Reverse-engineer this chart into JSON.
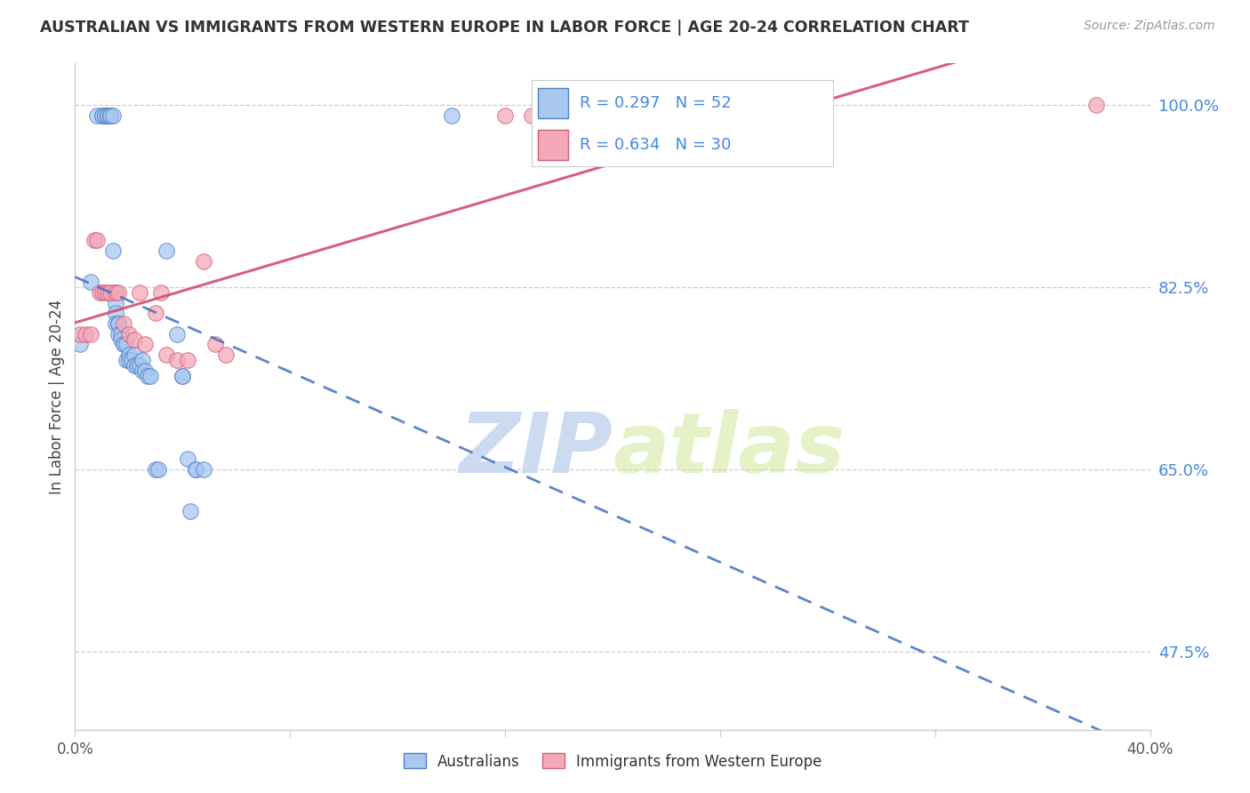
{
  "title": "AUSTRALIAN VS IMMIGRANTS FROM WESTERN EUROPE IN LABOR FORCE | AGE 20-24 CORRELATION CHART",
  "source": "Source: ZipAtlas.com",
  "ylabel": "In Labor Force | Age 20-24",
  "xlim": [
    0.0,
    0.4
  ],
  "ylim": [
    0.4,
    1.04
  ],
  "yticks": [
    1.0,
    0.825,
    0.65,
    0.475
  ],
  "ytick_labels": [
    "100.0%",
    "82.5%",
    "65.0%",
    "47.5%"
  ],
  "xticks": [
    0.0,
    0.08,
    0.16,
    0.24,
    0.32,
    0.4
  ],
  "xtick_labels": [
    "0.0%",
    "",
    "",
    "",
    "",
    "40.0%"
  ],
  "blue_r": 0.297,
  "blue_n": 52,
  "pink_r": 0.634,
  "pink_n": 30,
  "blue_fill": "#a8c8f0",
  "pink_fill": "#f4a8b8",
  "blue_edge": "#5080c8",
  "pink_edge": "#d06080",
  "blue_line": "#4070c0",
  "pink_line": "#d05070",
  "background_color": "#ffffff",
  "grid_color": "#ccccdd",
  "watermark_color": "#c8d8f0",
  "axis_color": "#cccccc",
  "tick_label_color_y": "#4488dd",
  "tick_label_color_x": "#555555",
  "legend_box_color": "#f0f0f8",
  "legend_edge_color": "#cccccc",
  "aus_x": [
    0.002,
    0.006,
    0.008,
    0.01,
    0.01,
    0.011,
    0.011,
    0.012,
    0.012,
    0.013,
    0.013,
    0.013,
    0.014,
    0.014,
    0.014,
    0.015,
    0.015,
    0.015,
    0.015,
    0.016,
    0.016,
    0.016,
    0.017,
    0.017,
    0.018,
    0.018,
    0.019,
    0.019,
    0.02,
    0.02,
    0.021,
    0.022,
    0.022,
    0.023,
    0.024,
    0.025,
    0.025,
    0.026,
    0.027,
    0.028,
    0.03,
    0.031,
    0.034,
    0.038,
    0.04,
    0.04,
    0.042,
    0.043,
    0.045,
    0.045,
    0.048,
    0.14
  ],
  "aus_y": [
    0.77,
    0.83,
    0.99,
    0.99,
    0.99,
    0.99,
    0.99,
    0.99,
    0.99,
    0.99,
    0.99,
    0.99,
    0.99,
    0.86,
    0.82,
    0.82,
    0.81,
    0.8,
    0.79,
    0.79,
    0.79,
    0.78,
    0.78,
    0.775,
    0.77,
    0.77,
    0.77,
    0.755,
    0.76,
    0.755,
    0.755,
    0.76,
    0.75,
    0.75,
    0.75,
    0.745,
    0.755,
    0.745,
    0.74,
    0.74,
    0.65,
    0.65,
    0.86,
    0.78,
    0.74,
    0.74,
    0.66,
    0.61,
    0.65,
    0.65,
    0.65,
    0.99
  ],
  "imm_x": [
    0.002,
    0.004,
    0.006,
    0.007,
    0.008,
    0.009,
    0.01,
    0.011,
    0.012,
    0.013,
    0.015,
    0.016,
    0.018,
    0.02,
    0.022,
    0.024,
    0.026,
    0.03,
    0.032,
    0.034,
    0.038,
    0.042,
    0.048,
    0.052,
    0.056,
    0.16,
    0.17,
    0.18,
    0.2,
    0.38
  ],
  "imm_y": [
    0.78,
    0.78,
    0.78,
    0.87,
    0.87,
    0.82,
    0.82,
    0.82,
    0.82,
    0.82,
    0.82,
    0.82,
    0.79,
    0.78,
    0.775,
    0.82,
    0.77,
    0.8,
    0.82,
    0.76,
    0.755,
    0.755,
    0.85,
    0.77,
    0.76,
    0.99,
    0.99,
    0.99,
    0.99,
    1.0
  ]
}
